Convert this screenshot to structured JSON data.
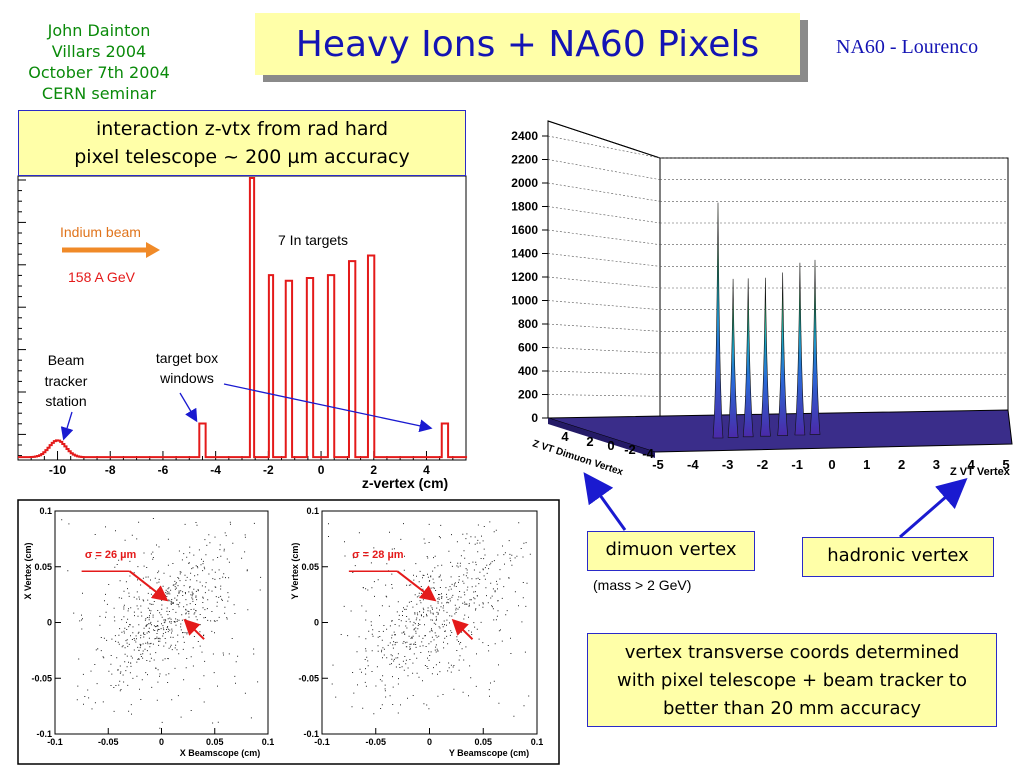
{
  "credit": {
    "lines": [
      "John Dainton",
      "Villars 2004",
      "October 7th 2004",
      "CERN seminar"
    ]
  },
  "title": "Heavy Ions + NA60 Pixels",
  "author": "NA60 - Lourenco",
  "callouts": {
    "zvtx_line1": "interaction z-vtx from rad hard",
    "zvtx_line2": "pixel telescope ~ 200 µm accuracy",
    "dimuon": "dimuon vertex",
    "mass_note": "(mass > 2 GeV)",
    "hadronic": "hadronic vertex",
    "transverse_line1": "vertex transverse coords determined",
    "transverse_line2": "with pixel telescope + beam tracker to",
    "transverse_line3": "better than 20 mm accuracy"
  },
  "colors": {
    "title_bg": "#ffffa8",
    "title_text": "#1414b4",
    "credit_text": "#0a8a0a",
    "histogram": "#e41a1a",
    "annotation_orange": "#f08a28",
    "arrow_blue": "#1a1ad0"
  },
  "chart_data": [
    {
      "type": "histogram",
      "xlabel": "z-vertex (cm)",
      "ylabel": "",
      "xlim": [
        -11.5,
        5.5
      ],
      "x_ticks": [
        -10,
        -8,
        -6,
        -4,
        -2,
        0,
        2,
        4
      ],
      "annotations": {
        "beam": "Indium beam",
        "energy": "158 A GeV",
        "targets": "7 In targets",
        "box_line1": "target box",
        "box_line2": "windows",
        "tracker_line1": "Beam",
        "tracker_line2": "tracker",
        "tracker_line3": "station"
      },
      "peaks": [
        {
          "z": -10.0,
          "relative_height": 0.06,
          "width": 0.55,
          "label": "beam tracker station"
        },
        {
          "z": -4.5,
          "relative_height": 0.12,
          "width": 0.1
        },
        {
          "z": -2.6,
          "relative_height": 1.0,
          "width": 0.1
        },
        {
          "z": -1.9,
          "relative_height": 0.65,
          "width": 0.1
        },
        {
          "z": -1.2,
          "relative_height": 0.63,
          "width": 0.1
        },
        {
          "z": -0.4,
          "relative_height": 0.64,
          "width": 0.1
        },
        {
          "z": 0.4,
          "relative_height": 0.65,
          "width": 0.1
        },
        {
          "z": 1.2,
          "relative_height": 0.7,
          "width": 0.1
        },
        {
          "z": 1.9,
          "relative_height": 0.72,
          "width": 0.1
        },
        {
          "z": 4.7,
          "relative_height": 0.12,
          "width": 0.1
        }
      ]
    },
    {
      "type": "surface3d",
      "zlim": [
        0,
        2400
      ],
      "z_ticks": [
        0,
        200,
        400,
        600,
        800,
        1000,
        1200,
        1400,
        1600,
        1800,
        2000,
        2200,
        2400
      ],
      "x_ticks": [
        -5,
        -4,
        -3,
        -2,
        -1,
        0,
        1,
        2,
        3,
        4,
        5
      ],
      "xlabel": "Z VT Vertex",
      "y_ticks": [
        4,
        2,
        0,
        -2,
        -4
      ],
      "ylabel": "Z VT Dimuon Vertex",
      "peaks_x": [
        -2.6,
        -1.9,
        -1.2,
        -0.4,
        0.4,
        1.2,
        1.9
      ],
      "peaks_z": [
        2050,
        1380,
        1380,
        1380,
        1420,
        1500,
        1520
      ]
    },
    {
      "type": "scatter",
      "xlabel": "X Beamscope (cm)",
      "ylabel": "X Vertex (cm)",
      "xlim": [
        -0.1,
        0.1
      ],
      "ylim": [
        -0.1,
        0.1
      ],
      "x_ticks": [
        "-0.1",
        "-0.05",
        "0",
        "0.05",
        "0.1"
      ],
      "y_ticks": [
        "0.1",
        "0.05",
        "0",
        "-0.05",
        "-0.1"
      ],
      "annotation": "σ = 26 µm",
      "sigma_um": 26
    },
    {
      "type": "scatter",
      "xlabel": "Y Beamscope (cm)",
      "ylabel": "Y Vertex (cm)",
      "xlim": [
        -0.1,
        0.1
      ],
      "ylim": [
        -0.1,
        0.1
      ],
      "x_ticks": [
        "-0.1",
        "-0.05",
        "0",
        "0.05",
        "0.1"
      ],
      "y_ticks": [
        "0.1",
        "0.05",
        "0",
        "-0.05",
        "-0.1"
      ],
      "annotation": "σ = 28 µm",
      "sigma_um": 28
    }
  ]
}
